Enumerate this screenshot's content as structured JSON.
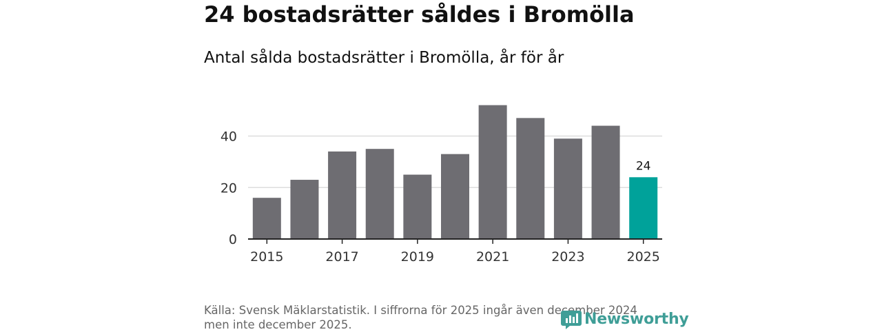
{
  "title": "24 bostadsrätter såldes i Bromölla",
  "subtitle": "Antal sålda bostadsrätter i Bromölla, år för år",
  "source": {
    "line1": "Källa: Svensk Mäklarstatistik. I siffrorna för 2025 ingår även december 2024",
    "line2": "men inte december 2025."
  },
  "brand": {
    "name": "Newsworthy",
    "color": "#3f9e97"
  },
  "colors": {
    "bar": "#6e6d72",
    "highlight": "#00a29a",
    "grid": "#dddddd",
    "axis": "#222222",
    "text": "#333333"
  },
  "chart_data": {
    "type": "bar",
    "title": "Antal sålda bostadsrätter i Bromölla, år för år",
    "xlabel": "",
    "ylabel": "",
    "categories": [
      "2015",
      "2016",
      "2017",
      "2018",
      "2019",
      "2020",
      "2021",
      "2022",
      "2023",
      "2024",
      "2025"
    ],
    "values": [
      16,
      23,
      34,
      35,
      25,
      33,
      52,
      47,
      39,
      44,
      24
    ],
    "highlight_index": 10,
    "data_labels": [
      {
        "index": 10,
        "text": "24"
      }
    ],
    "ylim": [
      0,
      54
    ],
    "yticks": [
      0,
      20,
      40
    ],
    "xticks": [
      "2015",
      "2017",
      "2019",
      "2021",
      "2023",
      "2025"
    ],
    "grid": true
  }
}
